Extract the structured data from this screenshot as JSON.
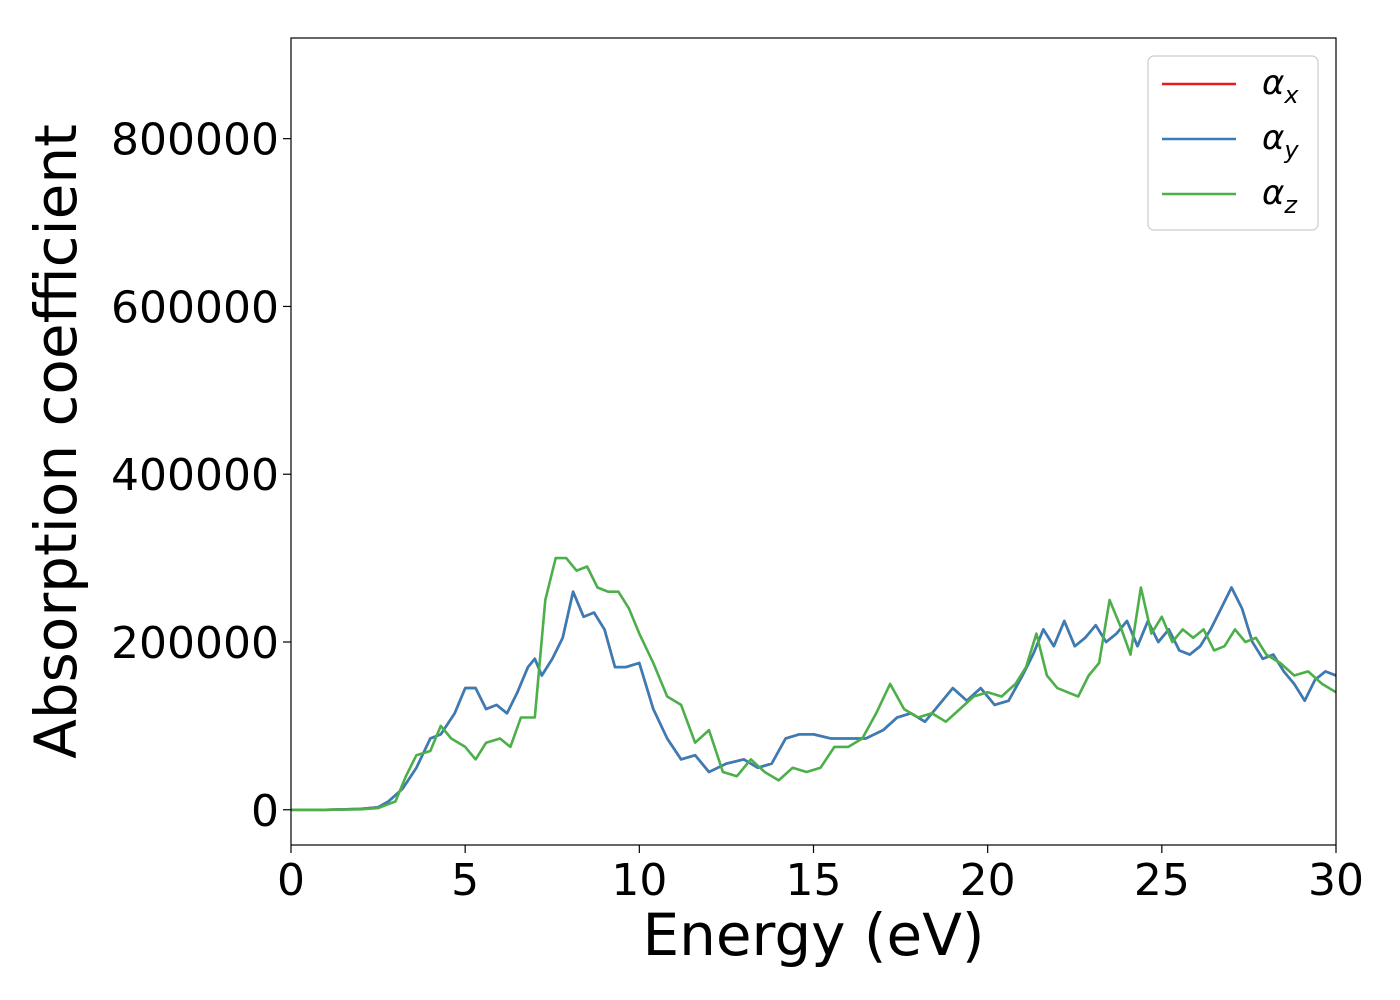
{
  "chart_data": {
    "type": "line",
    "xlabel": "Energy (eV)",
    "ylabel": "Absorption coefficient",
    "xlim": [
      0,
      30
    ],
    "ylim": [
      -42000,
      920000
    ],
    "xticks": [
      0,
      5,
      10,
      15,
      20,
      25,
      30
    ],
    "yticks": [
      0,
      200000,
      400000,
      600000,
      800000
    ],
    "grid": false,
    "legend_position": "top-right",
    "series": [
      {
        "name": "α_x",
        "legend_base": "α",
        "legend_sub": "x",
        "color": "#e41a1c",
        "x": [
          0,
          1,
          2,
          2.5,
          2.8,
          3.2,
          3.6,
          4,
          4.3,
          4.7,
          5,
          5.3,
          5.6,
          5.9,
          6.2,
          6.5,
          6.8,
          7,
          7.2,
          7.5,
          7.8,
          8.1,
          8.4,
          8.7,
          9,
          9.3,
          9.6,
          10,
          10.4,
          10.8,
          11.2,
          11.6,
          12,
          12.5,
          13,
          13.4,
          13.8,
          14.2,
          14.6,
          15,
          15.5,
          16,
          16.5,
          17,
          17.4,
          17.8,
          18.2,
          18.6,
          19,
          19.4,
          19.8,
          20.2,
          20.6,
          21,
          21.3,
          21.6,
          21.9,
          22.2,
          22.5,
          22.8,
          23.1,
          23.4,
          23.7,
          24,
          24.3,
          24.6,
          24.9,
          25.2,
          25.5,
          25.8,
          26.1,
          26.4,
          26.7,
          27,
          27.3,
          27.6,
          27.9,
          28.2,
          28.5,
          28.8,
          29.1,
          29.4,
          29.7,
          30
        ],
        "y": [
          0,
          0,
          1000,
          3000,
          10000,
          25000,
          50000,
          85000,
          90000,
          115000,
          145000,
          145000,
          120000,
          125000,
          115000,
          140000,
          170000,
          180000,
          160000,
          180000,
          205000,
          260000,
          230000,
          235000,
          215000,
          170000,
          170000,
          175000,
          120000,
          85000,
          60000,
          65000,
          45000,
          55000,
          60000,
          50000,
          55000,
          85000,
          90000,
          90000,
          85000,
          85000,
          85000,
          95000,
          110000,
          115000,
          105000,
          125000,
          145000,
          130000,
          145000,
          125000,
          130000,
          160000,
          185000,
          215000,
          195000,
          225000,
          195000,
          205000,
          220000,
          200000,
          210000,
          225000,
          195000,
          225000,
          200000,
          215000,
          190000,
          185000,
          195000,
          215000,
          240000,
          265000,
          240000,
          200000,
          180000,
          185000,
          165000,
          150000,
          130000,
          155000,
          165000,
          160000
        ]
      },
      {
        "name": "α_y",
        "legend_base": "α",
        "legend_sub": "y",
        "color": "#377eb8",
        "x": [
          0,
          1,
          2,
          2.5,
          2.8,
          3.2,
          3.6,
          4,
          4.3,
          4.7,
          5,
          5.3,
          5.6,
          5.9,
          6.2,
          6.5,
          6.8,
          7,
          7.2,
          7.5,
          7.8,
          8.1,
          8.4,
          8.7,
          9,
          9.3,
          9.6,
          10,
          10.4,
          10.8,
          11.2,
          11.6,
          12,
          12.5,
          13,
          13.4,
          13.8,
          14.2,
          14.6,
          15,
          15.5,
          16,
          16.5,
          17,
          17.4,
          17.8,
          18.2,
          18.6,
          19,
          19.4,
          19.8,
          20.2,
          20.6,
          21,
          21.3,
          21.6,
          21.9,
          22.2,
          22.5,
          22.8,
          23.1,
          23.4,
          23.7,
          24,
          24.3,
          24.6,
          24.9,
          25.2,
          25.5,
          25.8,
          26.1,
          26.4,
          26.7,
          27,
          27.3,
          27.6,
          27.9,
          28.2,
          28.5,
          28.8,
          29.1,
          29.4,
          29.7,
          30
        ],
        "y": [
          0,
          0,
          1000,
          3000,
          10000,
          25000,
          50000,
          85000,
          90000,
          115000,
          145000,
          145000,
          120000,
          125000,
          115000,
          140000,
          170000,
          180000,
          160000,
          180000,
          205000,
          260000,
          230000,
          235000,
          215000,
          170000,
          170000,
          175000,
          120000,
          85000,
          60000,
          65000,
          45000,
          55000,
          60000,
          50000,
          55000,
          85000,
          90000,
          90000,
          85000,
          85000,
          85000,
          95000,
          110000,
          115000,
          105000,
          125000,
          145000,
          130000,
          145000,
          125000,
          130000,
          160000,
          185000,
          215000,
          195000,
          225000,
          195000,
          205000,
          220000,
          200000,
          210000,
          225000,
          195000,
          225000,
          200000,
          215000,
          190000,
          185000,
          195000,
          215000,
          240000,
          265000,
          240000,
          200000,
          180000,
          185000,
          165000,
          150000,
          130000,
          155000,
          165000,
          160000
        ]
      },
      {
        "name": "α_z",
        "legend_base": "α",
        "legend_sub": "z",
        "color": "#4daf4a",
        "x": [
          0,
          1,
          2,
          2.5,
          3,
          3.3,
          3.6,
          4,
          4.3,
          4.6,
          5,
          5.3,
          5.6,
          6,
          6.3,
          6.6,
          7,
          7.3,
          7.6,
          7.9,
          8.2,
          8.5,
          8.8,
          9.1,
          9.4,
          9.7,
          10,
          10.4,
          10.8,
          11.2,
          11.6,
          12,
          12.4,
          12.8,
          13.2,
          13.6,
          14,
          14.4,
          14.8,
          15.2,
          15.6,
          16,
          16.4,
          16.8,
          17.2,
          17.6,
          18,
          18.4,
          18.8,
          19.2,
          19.6,
          20,
          20.4,
          20.8,
          21.1,
          21.4,
          21.7,
          22,
          22.3,
          22.6,
          22.9,
          23.2,
          23.5,
          23.8,
          24.1,
          24.4,
          24.7,
          25,
          25.3,
          25.6,
          25.9,
          26.2,
          26.5,
          26.8,
          27.1,
          27.4,
          27.7,
          28,
          28.4,
          28.8,
          29.2,
          29.6,
          30
        ],
        "y": [
          0,
          0,
          500,
          2000,
          10000,
          40000,
          65000,
          70000,
          100000,
          85000,
          75000,
          60000,
          80000,
          85000,
          75000,
          110000,
          110000,
          250000,
          300000,
          300000,
          285000,
          290000,
          265000,
          260000,
          260000,
          240000,
          210000,
          175000,
          135000,
          125000,
          80000,
          95000,
          45000,
          40000,
          60000,
          45000,
          35000,
          50000,
          45000,
          50000,
          75000,
          75000,
          85000,
          115000,
          150000,
          120000,
          110000,
          115000,
          105000,
          120000,
          135000,
          140000,
          135000,
          150000,
          170000,
          210000,
          160000,
          145000,
          140000,
          135000,
          160000,
          175000,
          250000,
          220000,
          185000,
          265000,
          210000,
          230000,
          200000,
          215000,
          205000,
          215000,
          190000,
          195000,
          215000,
          200000,
          205000,
          185000,
          175000,
          160000,
          165000,
          150000,
          140000
        ]
      }
    ]
  }
}
